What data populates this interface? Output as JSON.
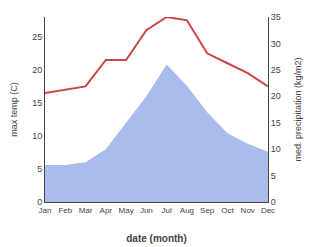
{
  "chart_data": {
    "type": "line",
    "xlabel": "date (month)",
    "ylabel": "max temp (C)",
    "y2label": "med. precipitation (kg/m2)",
    "categories": [
      "Jan",
      "Feb",
      "Mar",
      "Apr",
      "May",
      "Jun",
      "Jul",
      "Aug",
      "Sep",
      "Oct",
      "Nov",
      "Dec"
    ],
    "series": [
      {
        "type": "area",
        "axis": "y2",
        "color": "#aabbee",
        "values": [
          7.0,
          7.0,
          7.5,
          10.0,
          15.0,
          20.0,
          26.0,
          22.0,
          17.0,
          13.0,
          11.0,
          9.5
        ]
      },
      {
        "type": "line",
        "color": "#cc4444",
        "values": [
          16.5,
          17.0,
          17.5,
          21.5,
          21.5,
          26.0,
          28.0,
          27.5,
          22.5,
          21.0,
          19.5,
          17.5
        ]
      }
    ],
    "ylim": [
      0,
      28
    ],
    "yticks": [
      0,
      5,
      10,
      15,
      20,
      25
    ],
    "y2lim": [
      0,
      35
    ],
    "y2ticks": [
      0,
      5,
      10,
      15,
      20,
      25,
      30,
      35
    ],
    "grid": false
  }
}
